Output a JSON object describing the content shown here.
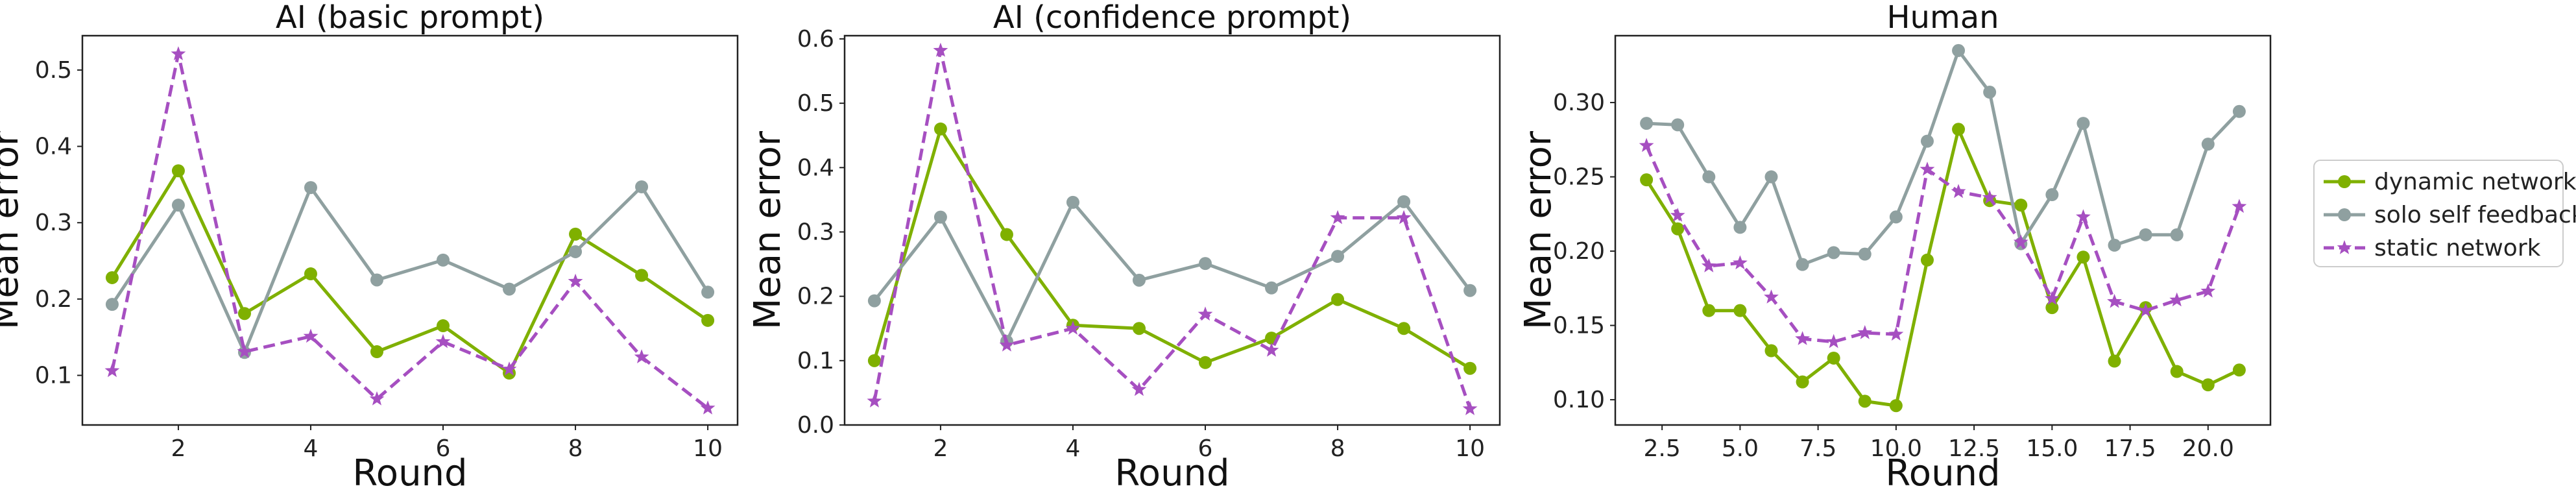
{
  "colors": {
    "dynamic network": "#7fb000",
    "solo self feedback": "#8fa0a0",
    "static network": "#a64fc1"
  },
  "legend": {
    "placement": "right",
    "entries": [
      "dynamic network",
      "solo self feedback",
      "static network"
    ]
  },
  "chart_data": [
    {
      "type": "line",
      "title": "AI (basic prompt)",
      "xlabel": "Round",
      "ylabel": "Mean error",
      "xlim": [
        0.55,
        10.45
      ],
      "ylim": [
        0.035,
        0.545
      ],
      "xticks": [
        2,
        4,
        6,
        8,
        10
      ],
      "xtick_labels": [
        "2",
        "4",
        "6",
        "8",
        "10"
      ],
      "yticks": [
        0.1,
        0.2,
        0.3,
        0.4,
        0.5
      ],
      "ytick_labels": [
        "0.1",
        "0.2",
        "0.3",
        "0.4",
        "0.5"
      ],
      "grid": false,
      "x": [
        1,
        2,
        3,
        4,
        5,
        6,
        7,
        8,
        9,
        10
      ],
      "series": [
        {
          "name": "dynamic network",
          "style": "solid",
          "marker": "circle",
          "values": [
            0.228,
            0.368,
            0.181,
            0.233,
            0.131,
            0.165,
            0.103,
            0.285,
            0.231,
            0.172
          ]
        },
        {
          "name": "solo self feedback",
          "style": "solid",
          "marker": "circle",
          "values": [
            0.193,
            0.323,
            0.13,
            0.346,
            0.225,
            0.251,
            0.213,
            0.262,
            0.347,
            0.209
          ]
        },
        {
          "name": "static network",
          "style": "dashed",
          "marker": "star",
          "values": [
            0.106,
            0.521,
            0.131,
            0.151,
            0.069,
            0.144,
            0.108,
            0.223,
            0.124,
            0.057
          ]
        }
      ]
    },
    {
      "type": "line",
      "title": "AI (confidence prompt)",
      "xlabel": "Round",
      "ylabel": "Mean error",
      "xlim": [
        0.55,
        10.45
      ],
      "ylim": [
        0.0,
        0.605
      ],
      "xticks": [
        2,
        4,
        6,
        8,
        10
      ],
      "xtick_labels": [
        "2",
        "4",
        "6",
        "8",
        "10"
      ],
      "yticks": [
        0.0,
        0.1,
        0.2,
        0.3,
        0.4,
        0.5,
        0.6
      ],
      "ytick_labels": [
        "0.0",
        "0.1",
        "0.2",
        "0.3",
        "0.4",
        "0.5",
        "0.6"
      ],
      "grid": false,
      "x": [
        1,
        2,
        3,
        4,
        5,
        6,
        7,
        8,
        9,
        10
      ],
      "series": [
        {
          "name": "dynamic network",
          "style": "solid",
          "marker": "circle",
          "values": [
            0.1,
            0.46,
            0.296,
            0.155,
            0.15,
            0.097,
            0.135,
            0.195,
            0.15,
            0.088
          ]
        },
        {
          "name": "solo self feedback",
          "style": "solid",
          "marker": "circle",
          "values": [
            0.193,
            0.323,
            0.13,
            0.346,
            0.225,
            0.251,
            0.213,
            0.262,
            0.347,
            0.209
          ]
        },
        {
          "name": "static network",
          "style": "dashed",
          "marker": "star",
          "values": [
            0.037,
            0.582,
            0.124,
            0.15,
            0.055,
            0.172,
            0.116,
            0.322,
            0.322,
            0.025
          ]
        }
      ]
    },
    {
      "type": "line",
      "title": "Human",
      "xlabel": "Round",
      "ylabel": "Mean error",
      "xlim": [
        1.0,
        22.0
      ],
      "ylim": [
        0.083,
        0.345
      ],
      "xticks": [
        2.5,
        5.0,
        7.5,
        10.0,
        12.5,
        15.0,
        17.5,
        20.0
      ],
      "xtick_labels": [
        "2.5",
        "5.0",
        "7.5",
        "10.0",
        "12.5",
        "15.0",
        "17.5",
        "20.0"
      ],
      "yticks": [
        0.1,
        0.15,
        0.2,
        0.25,
        0.3
      ],
      "ytick_labels": [
        "0.10",
        "0.15",
        "0.20",
        "0.25",
        "0.30"
      ],
      "grid": false,
      "x": [
        2,
        3,
        4,
        5,
        6,
        7,
        8,
        9,
        10,
        11,
        12,
        13,
        14,
        15,
        16,
        17,
        18,
        19,
        20,
        21
      ],
      "series": [
        {
          "name": "dynamic network",
          "style": "solid",
          "marker": "circle",
          "values": [
            0.248,
            0.215,
            0.16,
            0.16,
            0.133,
            0.112,
            0.128,
            0.099,
            0.096,
            0.194,
            0.282,
            0.234,
            0.231,
            0.162,
            0.196,
            0.126,
            0.162,
            0.119,
            0.11,
            0.12
          ]
        },
        {
          "name": "solo self feedback",
          "style": "solid",
          "marker": "circle",
          "values": [
            0.286,
            0.285,
            0.25,
            0.216,
            0.25,
            0.191,
            0.199,
            0.198,
            0.223,
            0.274,
            0.335,
            0.307,
            0.205,
            0.238,
            0.286,
            0.204,
            0.211,
            0.211,
            0.272,
            0.294
          ]
        },
        {
          "name": "static network",
          "style": "dashed",
          "marker": "star",
          "values": [
            0.271,
            0.224,
            0.19,
            0.192,
            0.169,
            0.141,
            0.139,
            0.145,
            0.144,
            0.255,
            0.24,
            0.236,
            0.206,
            0.168,
            0.223,
            0.166,
            0.16,
            0.167,
            0.173,
            0.23
          ]
        }
      ]
    }
  ]
}
